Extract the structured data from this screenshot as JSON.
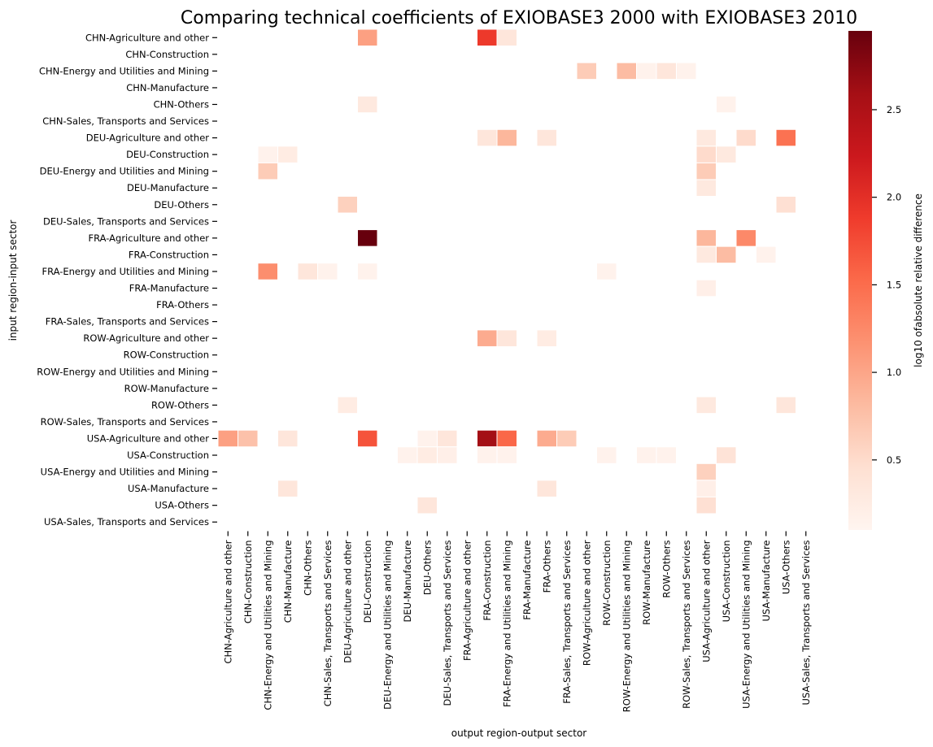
{
  "chart_data": {
    "type": "heatmap",
    "title": "Comparing technical coefficients of EXIOBASE3 2000 with EXIOBASE3 2010",
    "xlabel": "output region-output sector",
    "ylabel": "input region-input sector",
    "colorbar_label": "log10 ofabsolute relative difference",
    "colorbar_ticks": [
      "0.5",
      "1.0",
      "1.5",
      "2.0",
      "2.5"
    ],
    "colorbar_tick_values": [
      0.5,
      1.0,
      1.5,
      2.0,
      2.5
    ],
    "color_range": [
      0.1,
      2.95
    ],
    "colormap": "Reds",
    "colormap_stops": [
      "#fff5f0",
      "#fee0d2",
      "#fcbba1",
      "#fc9272",
      "#fb6a4a",
      "#ef3b2c",
      "#cb181d",
      "#a50f15",
      "#67000d"
    ],
    "x_categories": [
      "CHN-Agriculture and other",
      "CHN-Construction",
      "CHN-Energy and Utilities and Mining",
      "CHN-Manufacture",
      "CHN-Others",
      "CHN-Sales, Transports and Services",
      "DEU-Agriculture and other",
      "DEU-Construction",
      "DEU-Energy and Utilities and Mining",
      "DEU-Manufacture",
      "DEU-Others",
      "DEU-Sales, Transports and Services",
      "FRA-Agriculture and other",
      "FRA-Construction",
      "FRA-Energy and Utilities and Mining",
      "FRA-Manufacture",
      "FRA-Others",
      "FRA-Sales, Transports and Services",
      "ROW-Agriculture and other",
      "ROW-Construction",
      "ROW-Energy and Utilities and Mining",
      "ROW-Manufacture",
      "ROW-Others",
      "ROW-Sales, Transports and Services",
      "USA-Agriculture and other",
      "USA-Construction",
      "USA-Energy and Utilities and Mining",
      "USA-Manufacture",
      "USA-Others",
      "USA-Sales, Transports and Services"
    ],
    "y_categories": [
      "CHN-Agriculture and other",
      "CHN-Construction",
      "CHN-Energy and Utilities and Mining",
      "CHN-Manufacture",
      "CHN-Others",
      "CHN-Sales, Transports and Services",
      "DEU-Agriculture and other",
      "DEU-Construction",
      "DEU-Energy and Utilities and Mining",
      "DEU-Manufacture",
      "DEU-Others",
      "DEU-Sales, Transports and Services",
      "FRA-Agriculture and other",
      "FRA-Construction",
      "FRA-Energy and Utilities and Mining",
      "FRA-Manufacture",
      "FRA-Others",
      "FRA-Sales, Transports and Services",
      "ROW-Agriculture and other",
      "ROW-Construction",
      "ROW-Energy and Utilities and Mining",
      "ROW-Manufacture",
      "ROW-Others",
      "ROW-Sales, Transports and Services",
      "USA-Agriculture and other",
      "USA-Construction",
      "USA-Energy and Utilities and Mining",
      "USA-Manufacture",
      "USA-Others",
      "USA-Sales, Transports and Services"
    ],
    "cells": [
      [
        0,
        7,
        1.05
      ],
      [
        0,
        13,
        1.9
      ],
      [
        0,
        14,
        0.35
      ],
      [
        2,
        18,
        0.65
      ],
      [
        2,
        20,
        0.8
      ],
      [
        2,
        21,
        0.15
      ],
      [
        2,
        22,
        0.35
      ],
      [
        2,
        23,
        0.15
      ],
      [
        4,
        7,
        0.3
      ],
      [
        4,
        25,
        0.15
      ],
      [
        6,
        13,
        0.35
      ],
      [
        6,
        14,
        0.85
      ],
      [
        6,
        16,
        0.35
      ],
      [
        6,
        24,
        0.3
      ],
      [
        6,
        26,
        0.5
      ],
      [
        6,
        28,
        1.45
      ],
      [
        7,
        2,
        0.15
      ],
      [
        7,
        3,
        0.25
      ],
      [
        7,
        24,
        0.5
      ],
      [
        7,
        25,
        0.3
      ],
      [
        8,
        2,
        0.65
      ],
      [
        8,
        24,
        0.65
      ],
      [
        9,
        24,
        0.3
      ],
      [
        10,
        6,
        0.6
      ],
      [
        10,
        28,
        0.45
      ],
      [
        12,
        7,
        2.95
      ],
      [
        12,
        24,
        0.85
      ],
      [
        12,
        26,
        1.25
      ],
      [
        13,
        24,
        0.3
      ],
      [
        13,
        25,
        0.8
      ],
      [
        13,
        27,
        0.15
      ],
      [
        14,
        2,
        1.2
      ],
      [
        14,
        4,
        0.35
      ],
      [
        14,
        5,
        0.15
      ],
      [
        14,
        7,
        0.15
      ],
      [
        14,
        19,
        0.15
      ],
      [
        15,
        24,
        0.2
      ],
      [
        18,
        13,
        0.95
      ],
      [
        18,
        14,
        0.35
      ],
      [
        18,
        16,
        0.25
      ],
      [
        22,
        6,
        0.25
      ],
      [
        22,
        24,
        0.3
      ],
      [
        22,
        28,
        0.35
      ],
      [
        24,
        0,
        1.05
      ],
      [
        24,
        1,
        0.75
      ],
      [
        24,
        3,
        0.35
      ],
      [
        24,
        7,
        1.7
      ],
      [
        24,
        10,
        0.15
      ],
      [
        24,
        11,
        0.35
      ],
      [
        24,
        13,
        2.6
      ],
      [
        24,
        14,
        1.55
      ],
      [
        24,
        16,
        0.95
      ],
      [
        24,
        17,
        0.65
      ],
      [
        25,
        9,
        0.15
      ],
      [
        25,
        10,
        0.25
      ],
      [
        25,
        11,
        0.2
      ],
      [
        25,
        13,
        0.15
      ],
      [
        25,
        14,
        0.15
      ],
      [
        25,
        19,
        0.15
      ],
      [
        25,
        21,
        0.15
      ],
      [
        25,
        22,
        0.15
      ],
      [
        25,
        25,
        0.4
      ],
      [
        26,
        24,
        0.6
      ],
      [
        27,
        3,
        0.35
      ],
      [
        27,
        16,
        0.35
      ],
      [
        27,
        24,
        0.2
      ],
      [
        28,
        10,
        0.35
      ],
      [
        28,
        24,
        0.45
      ]
    ]
  }
}
